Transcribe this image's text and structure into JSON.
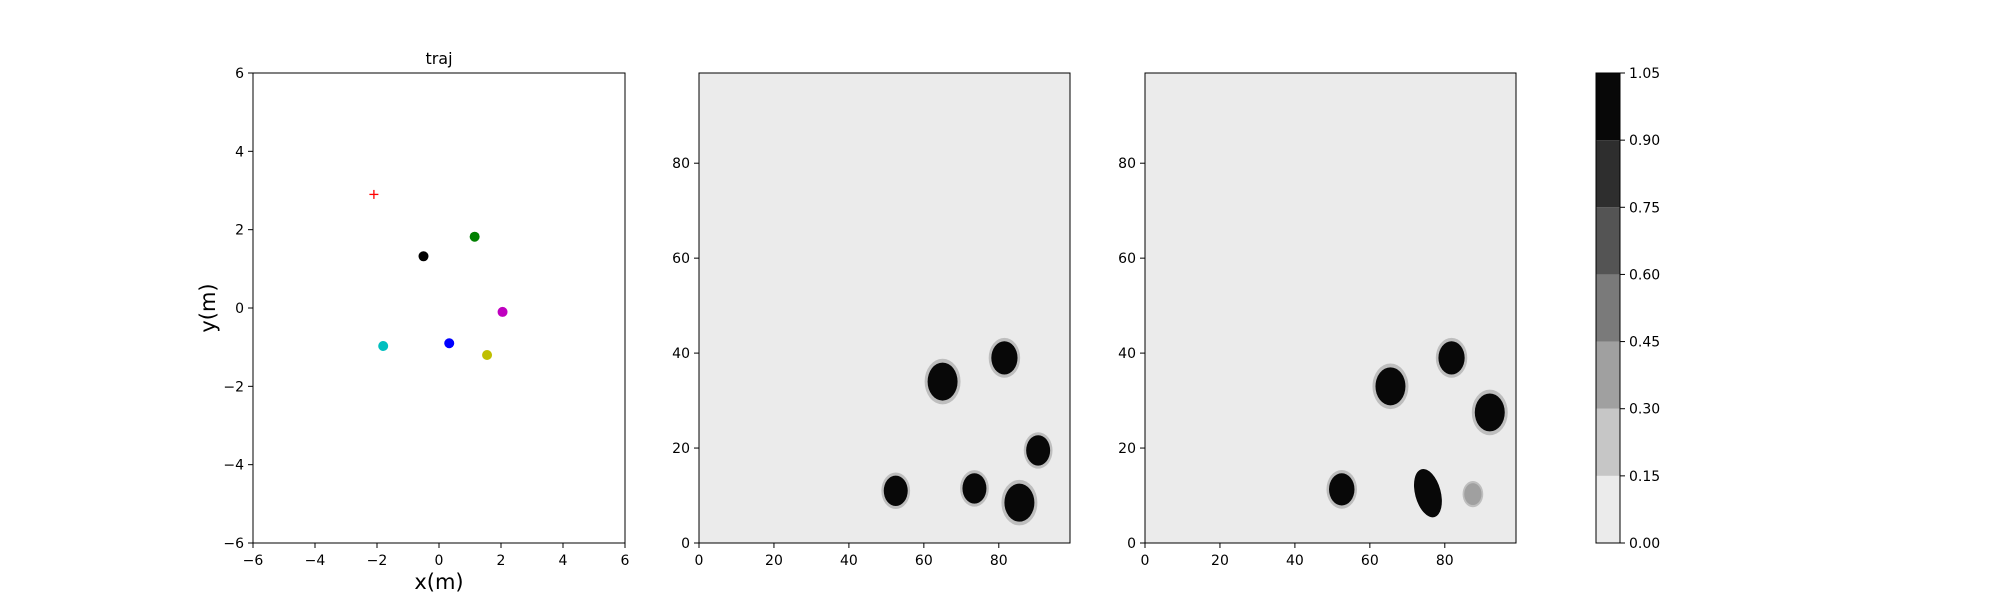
{
  "chart_data": [
    {
      "type": "scatter",
      "title": "traj",
      "xlabel": "x(m)",
      "ylabel": "y(m)",
      "xlim": [
        -6,
        6
      ],
      "ylim": [
        -6,
        6
      ],
      "xticks": [
        "−6",
        "−4",
        "−2",
        "0",
        "2",
        "4",
        "6"
      ],
      "yticks": [
        "−6",
        "−4",
        "−2",
        "0",
        "2",
        "4",
        "6"
      ],
      "grid": false,
      "points": [
        {
          "x": -2.1,
          "y": 2.9,
          "color": "#ff0000",
          "marker": "plus"
        },
        {
          "x": -0.5,
          "y": 1.32,
          "color": "#000000",
          "marker": "circle"
        },
        {
          "x": 1.15,
          "y": 1.82,
          "color": "#008000",
          "marker": "circle"
        },
        {
          "x": 2.05,
          "y": -0.1,
          "color": "#bf00bf",
          "marker": "circle"
        },
        {
          "x": -1.8,
          "y": -0.97,
          "color": "#00bfbf",
          "marker": "circle"
        },
        {
          "x": 0.33,
          "y": -0.9,
          "color": "#0000ff",
          "marker": "circle"
        },
        {
          "x": 1.55,
          "y": -1.2,
          "color": "#bfbf00",
          "marker": "circle"
        }
      ]
    },
    {
      "type": "heatmap",
      "xlim": [
        0,
        99
      ],
      "ylim": [
        0,
        99
      ],
      "xticks": [
        "0",
        "20",
        "40",
        "60",
        "80"
      ],
      "yticks": [
        "0",
        "20",
        "40",
        "60",
        "80"
      ],
      "background_level": 0.0,
      "blobs": [
        {
          "x": 65,
          "y": 34,
          "r": 4,
          "level": 1.0
        },
        {
          "x": 81.5,
          "y": 39,
          "r": 3.5,
          "level": 1.0
        },
        {
          "x": 90.5,
          "y": 19.5,
          "r": 3.2,
          "level": 1.0
        },
        {
          "x": 52.5,
          "y": 11,
          "r": 3.2,
          "level": 1.0
        },
        {
          "x": 73.5,
          "y": 11.5,
          "r": 3.2,
          "level": 1.0
        },
        {
          "x": 85.5,
          "y": 8.5,
          "r": 4,
          "level": 1.0
        }
      ]
    },
    {
      "type": "heatmap",
      "xlim": [
        0,
        99
      ],
      "ylim": [
        0,
        99
      ],
      "xticks": [
        "0",
        "20",
        "40",
        "60",
        "80"
      ],
      "yticks": [
        "0",
        "20",
        "40",
        "60",
        "80"
      ],
      "background_level": 0.0,
      "blobs": [
        {
          "x": 65.5,
          "y": 33,
          "r": 4,
          "level": 1.0
        },
        {
          "x": 81.8,
          "y": 39,
          "r": 3.5,
          "level": 1.0
        },
        {
          "x": 92,
          "y": 27.5,
          "r": 4,
          "level": 1.0
        },
        {
          "x": 52.5,
          "y": 11.3,
          "r": 3.4,
          "level": 1.0
        },
        {
          "x": 75.5,
          "y": 10.5,
          "r": 3.6,
          "level": 1.0,
          "elongated": true
        },
        {
          "x": 87.5,
          "y": 10.3,
          "r": 2.3,
          "level": 0.3
        }
      ]
    },
    {
      "type": "colorbar",
      "bounds": [
        "0.00",
        "0.15",
        "0.30",
        "0.45",
        "0.60",
        "0.75",
        "0.90",
        "1.05"
      ],
      "colors": [
        "#ebebeb",
        "#c6c6c6",
        "#a0a0a0",
        "#7a7a7a",
        "#545454",
        "#2e2e2e",
        "#080808"
      ]
    }
  ]
}
